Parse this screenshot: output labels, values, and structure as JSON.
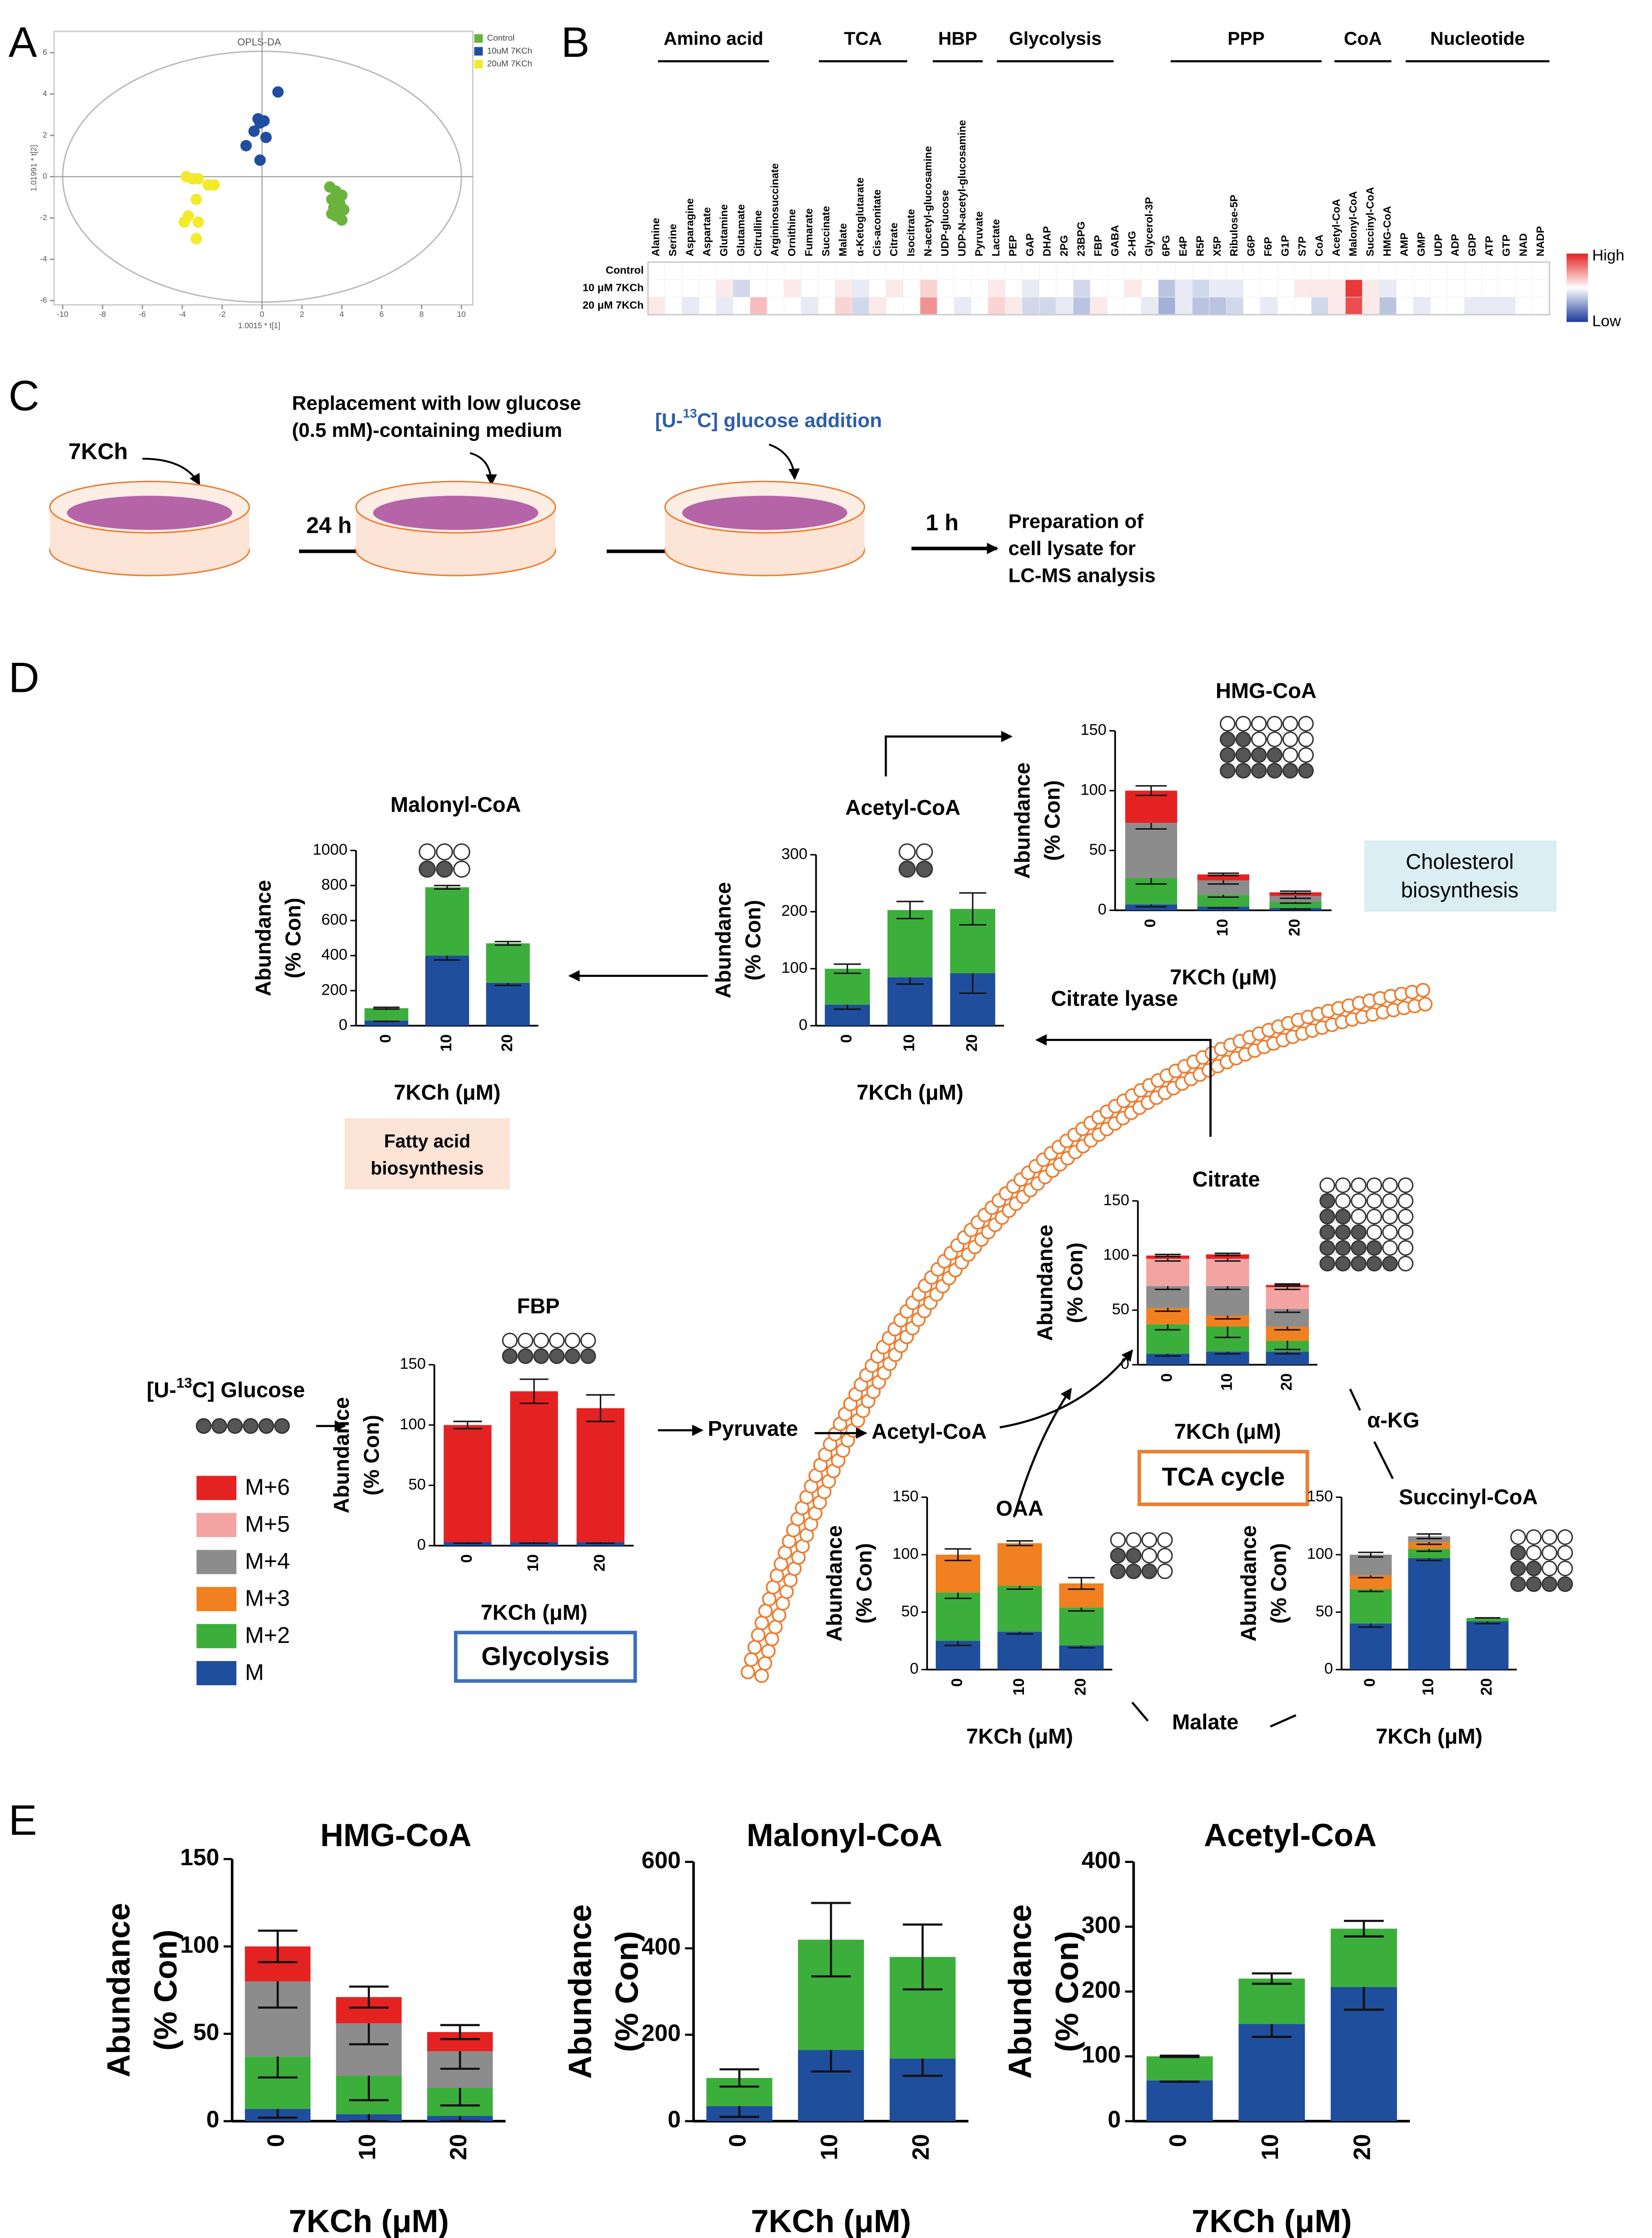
{
  "figure": {
    "panel_labels": [
      "A",
      "B",
      "C",
      "D",
      "E"
    ],
    "protocol": {
      "drug": "7KCh",
      "step1": "24 h",
      "replacement": [
        "Replacement with low glucose",
        "(0.5 mM)-containing medium"
      ],
      "addition": [
        "[U-",
        "13",
        "C] glucose addition"
      ],
      "step2": "1 h",
      "preparation": [
        "Preparation of",
        "cell lysate for",
        "LC-MS analysis"
      ]
    },
    "pathway": {
      "glucose": [
        "[U-",
        "13",
        "C] Glucose"
      ],
      "pyruvate": "Pyruvate",
      "acetyl_coa": "Acetyl-CoA",
      "citrate_lyase": "Citrate lyase",
      "akg": "α-KG",
      "malate": "Malate",
      "tca": "TCA cycle",
      "glycolysis": "Glycolysis",
      "fatty_acid": [
        "Fatty acid",
        "biosynthesis"
      ],
      "cholesterol": [
        "Cholesterol",
        "biosynthesis"
      ]
    }
  },
  "chart_data": [
    {
      "type": "scatter",
      "title": "OPLS-DA",
      "xlabel": "1.0015 * t[1]",
      "ylabel": "1.01991 * t[2]",
      "xlim": [
        -10,
        10
      ],
      "xticks": [
        -10,
        -8,
        -6,
        -4,
        -2,
        0,
        2,
        4,
        6,
        8,
        10
      ],
      "ylim": [
        -6,
        6
      ],
      "yticks": [
        -6,
        -4,
        -2,
        0,
        2,
        4,
        6
      ],
      "series": [
        {
          "name": "Control",
          "color": "#6ab43e",
          "x": [
            3.4,
            3.7,
            4.0,
            3.5,
            3.9,
            3.6,
            4.1,
            3.7,
            4.0,
            3.5
          ],
          "y": [
            -0.5,
            -0.7,
            -0.9,
            -1.1,
            -1.3,
            -1.5,
            -1.6,
            -1.9,
            -2.1,
            -1.8
          ]
        },
        {
          "name": "10uM 7KCh",
          "color": "#1f4ea0",
          "x": [
            -0.2,
            0.1,
            0.8,
            -0.4,
            0.2,
            -0.8,
            -0.1,
            -0.1
          ],
          "y": [
            2.8,
            2.7,
            4.1,
            2.2,
            1.9,
            1.5,
            0.8,
            2.6
          ]
        },
        {
          "name": "20uM 7KCh",
          "color": "#f2ea2a",
          "x": [
            -3.5,
            -3.8,
            -3.2,
            -2.4,
            -2.7,
            -3.3,
            -3.7,
            -3.2,
            -3.9,
            -3.3
          ],
          "y": [
            -0.1,
            0,
            -0.1,
            -0.4,
            -0.4,
            -1.1,
            -1.9,
            -2.2,
            -2.2,
            -3.0
          ]
        }
      ]
    },
    {
      "type": "heatmap",
      "groups": [
        "Amino acid",
        "TCA",
        "HBP",
        "Glycolysis",
        "PPP",
        "CoA",
        "Nucleotide"
      ],
      "colorbar_labels": [
        "High",
        "Low"
      ],
      "colors": [
        "#1a3a9c",
        "#ffffff",
        "#e52222"
      ],
      "categories": [
        "Alanine",
        "Serine",
        "Asparagine",
        "Aspartate",
        "Glutamine",
        "Glutamate",
        "Citrulline",
        "Argininosuccinate",
        "Ornithine",
        "Fumarate",
        "Succinate",
        "Malate",
        "α-Ketoglutarate",
        "Cis-aconitate",
        "Citrate",
        "Isocitrate",
        "N-acetyl-glucosamine",
        "UDP-glucose",
        "UDP-N-acetyl-glucosamine",
        "Pyruvate",
        "Lactate",
        "PEP",
        "GAP",
        "DHAP",
        "2PG",
        "23BPG",
        "FBP",
        "GABA",
        "2-HG",
        "Glycerol-3P",
        "6PG",
        "E4P",
        "R5P",
        "X5P",
        "Ribulose-5P",
        "G6P",
        "F6P",
        "G1P",
        "S7P",
        "CoA",
        "Acetyl-CoA",
        "Malonyl-CoA",
        "Succinyl-CoA",
        "HMG-CoA",
        "AMP",
        "GMP",
        "UDP",
        "ADP",
        "GDP",
        "ATP",
        "GTP",
        "NAD",
        "NADP"
      ],
      "series": [
        {
          "name": "Control",
          "values": [
            0,
            0,
            0,
            0,
            0,
            0,
            0,
            0,
            0,
            0,
            0,
            0,
            0,
            0,
            0,
            0,
            0,
            0,
            0,
            0,
            0,
            0,
            0,
            0,
            0,
            0,
            0,
            0,
            0,
            0,
            0,
            0,
            0,
            0,
            0,
            0,
            0,
            0,
            0,
            0,
            0,
            0,
            0,
            0,
            0,
            0,
            0,
            0,
            0,
            0,
            0,
            0,
            0
          ]
        },
        {
          "name": "10 μM 7KCh",
          "values": [
            0,
            0,
            0,
            0,
            0.1,
            -0.2,
            0,
            0,
            0.1,
            0,
            0,
            0.1,
            -0.1,
            0,
            0.1,
            0,
            0.2,
            0,
            0,
            0,
            0.1,
            0,
            -0.1,
            0,
            0,
            -0.2,
            0,
            0,
            0.1,
            0,
            -0.3,
            -0.1,
            -0.2,
            -0.1,
            -0.1,
            0,
            0,
            0,
            0.1,
            0.1,
            0.1,
            0.9,
            0.1,
            -0.1,
            0,
            0,
            0,
            0,
            0,
            0,
            0,
            0,
            0
          ]
        },
        {
          "name": "20 μM 7KCh",
          "values": [
            0.1,
            0,
            -0.1,
            0,
            -0.1,
            0,
            0.3,
            0,
            0,
            -0.1,
            0,
            0.2,
            -0.2,
            0.1,
            0,
            0,
            0.5,
            0,
            -0.1,
            0,
            0.2,
            0.1,
            -0.2,
            -0.2,
            -0.1,
            -0.3,
            0.1,
            0,
            0,
            -0.1,
            -0.4,
            -0.1,
            -0.3,
            -0.3,
            -0.2,
            0,
            -0.1,
            0,
            0,
            -0.2,
            0.1,
            0.8,
            0.1,
            -0.3,
            0,
            -0.1,
            0,
            0,
            -0.1,
            -0.1,
            -0.1,
            0,
            0
          ]
        }
      ]
    },
    {
      "type": "stacked_bar",
      "title": "Malonyl-CoA",
      "categories": [
        "0",
        "10",
        "20"
      ],
      "xlabel": "7KCh (μM)",
      "ylabel": [
        "Abundance",
        "(% Con)"
      ],
      "ylim": [
        0,
        1000
      ],
      "yticks": [
        0,
        200,
        400,
        600,
        800,
        1000
      ],
      "series": [
        {
          "color": "#1f4e9c",
          "values": [
            30,
            400,
            245
          ],
          "errors": [
            5,
            25,
            15
          ]
        },
        {
          "color": "#3cae3c",
          "values": [
            70,
            390,
            225
          ],
          "errors": [
            5,
            10,
            10
          ]
        }
      ]
    },
    {
      "type": "stacked_bar",
      "title": "Acetyl-CoA",
      "categories": [
        "0",
        "10",
        "20"
      ],
      "xlabel": "7KCh (μM)",
      "ylabel": [
        "Abundance",
        "(% Con)"
      ],
      "ylim": [
        0,
        300
      ],
      "yticks": [
        0,
        100,
        200,
        300
      ],
      "series": [
        {
          "color": "#1f4e9c",
          "values": [
            37,
            85,
            92
          ],
          "errors": [
            8,
            12,
            35
          ]
        },
        {
          "color": "#3cae3c",
          "values": [
            63,
            118,
            113
          ],
          "errors": [
            8,
            15,
            28
          ]
        }
      ]
    },
    {
      "type": "stacked_bar",
      "title": "HMG-CoA",
      "categories": [
        "0",
        "10",
        "20"
      ],
      "xlabel": "7KCh (μM)",
      "ylabel": [
        "Abundance",
        "(% Con)"
      ],
      "ylim": [
        0,
        150
      ],
      "yticks": [
        0,
        50,
        100,
        150
      ],
      "series": [
        {
          "color": "#1f4e9c",
          "values": [
            5,
            3,
            2
          ],
          "errors": [
            2,
            1,
            1
          ]
        },
        {
          "color": "#3cae3c",
          "values": [
            22,
            10,
            5
          ],
          "errors": [
            5,
            2,
            1
          ]
        },
        {
          "color": "#8c8c8c",
          "values": [
            46,
            12,
            5
          ],
          "errors": [
            5,
            3,
            2
          ]
        },
        {
          "color": "#e52222",
          "values": [
            27,
            5,
            3
          ],
          "errors": [
            4,
            1,
            1
          ]
        }
      ]
    },
    {
      "type": "stacked_bar",
      "title": "Citrate",
      "categories": [
        "0",
        "10",
        "20"
      ],
      "xlabel": "7KCh (μM)",
      "ylabel": [
        "Abundance",
        "(% Con)"
      ],
      "ylim": [
        0,
        150
      ],
      "yticks": [
        0,
        50,
        100,
        150
      ],
      "series": [
        {
          "name": "M",
          "color": "#1f4e9c",
          "values": [
            10,
            12,
            12
          ],
          "errors": [
            2,
            2,
            2
          ]
        },
        {
          "name": "M+2",
          "color": "#3cae3c",
          "values": [
            27,
            23,
            10
          ],
          "errors": [
            5,
            10,
            8
          ]
        },
        {
          "name": "M+3",
          "color": "#f08020",
          "values": [
            15,
            10,
            13
          ],
          "errors": [
            3,
            3,
            3
          ]
        },
        {
          "name": "M+4",
          "color": "#8c8c8c",
          "values": [
            20,
            27,
            16
          ],
          "errors": [
            3,
            3,
            3
          ]
        },
        {
          "name": "M+5",
          "color": "#f4a3a3",
          "values": [
            25,
            25,
            20
          ],
          "errors": [
            2,
            2,
            2
          ]
        },
        {
          "name": "M+6",
          "color": "#e52222",
          "values": [
            3,
            4,
            2
          ],
          "errors": [
            1,
            1,
            1
          ]
        }
      ]
    },
    {
      "type": "stacked_bar",
      "title": "FBP",
      "categories": [
        "0",
        "10",
        "20"
      ],
      "xlabel": "7KCh (μM)",
      "ylabel": [
        "Abundance",
        "(% Con)"
      ],
      "ylim": [
        0,
        150
      ],
      "yticks": [
        0,
        50,
        100,
        150
      ],
      "series": [
        {
          "color": "#1f4e9c",
          "values": [
            3,
            3,
            3
          ],
          "errors": [
            1,
            1,
            1
          ]
        },
        {
          "color": "#e52222",
          "values": [
            97,
            125,
            111
          ],
          "errors": [
            3,
            10,
            11
          ]
        }
      ]
    },
    {
      "type": "stacked_bar",
      "title": "OAA",
      "categories": [
        "0",
        "10",
        "20"
      ],
      "xlabel": "7KCh (μM)",
      "ylabel": [
        "Abundance",
        "(% Con)"
      ],
      "ylim": [
        0,
        150
      ],
      "yticks": [
        0,
        50,
        100,
        150
      ],
      "series": [
        {
          "color": "#1f4e9c",
          "values": [
            25,
            33,
            21
          ],
          "errors": [
            4,
            2,
            2
          ]
        },
        {
          "color": "#3cae3c",
          "values": [
            42,
            40,
            33
          ],
          "errors": [
            5,
            3,
            3
          ]
        },
        {
          "color": "#f08020",
          "values": [
            33,
            37,
            21
          ],
          "errors": [
            5,
            2,
            5
          ]
        }
      ]
    },
    {
      "type": "stacked_bar",
      "title": "Succinyl-CoA",
      "categories": [
        "0",
        "10",
        "20"
      ],
      "xlabel": "7KCh (μM)",
      "ylabel": [
        "Abundance",
        "(% Con)"
      ],
      "ylim": [
        0,
        150
      ],
      "yticks": [
        0,
        50,
        100,
        150
      ],
      "series": [
        {
          "color": "#1f4e9c",
          "values": [
            40,
            97,
            42
          ],
          "errors": [
            3,
            2,
            2
          ]
        },
        {
          "color": "#3cae3c",
          "values": [
            30,
            8,
            3
          ],
          "errors": [
            2,
            2,
            0
          ]
        },
        {
          "color": "#f08020",
          "values": [
            12,
            6,
            0
          ],
          "errors": [
            2,
            2,
            0
          ]
        },
        {
          "color": "#8c8c8c",
          "values": [
            18,
            5,
            0
          ],
          "errors": [
            2,
            2,
            0
          ]
        }
      ]
    },
    {
      "type": "stacked_bar",
      "title": "HMG-CoA",
      "categories": [
        "0",
        "10",
        "20"
      ],
      "xlabel": "7KCh (μM)",
      "ylabel": [
        "Abundance",
        "(% Con)"
      ],
      "ylim": [
        0,
        150
      ],
      "yticks": [
        0,
        50,
        100,
        150
      ],
      "series": [
        {
          "color": "#1f4e9c",
          "values": [
            7,
            4,
            3
          ],
          "errors": [
            5,
            4,
            3
          ]
        },
        {
          "color": "#3cae3c",
          "values": [
            30,
            22,
            16
          ],
          "errors": [
            12,
            14,
            10
          ]
        },
        {
          "color": "#8c8c8c",
          "values": [
            43,
            30,
            21
          ],
          "errors": [
            15,
            12,
            10
          ]
        },
        {
          "color": "#e52222",
          "values": [
            20,
            15,
            11
          ],
          "errors": [
            9,
            6,
            4
          ]
        }
      ]
    },
    {
      "type": "stacked_bar",
      "title": "Malonyl-CoA",
      "categories": [
        "0",
        "10",
        "20"
      ],
      "xlabel": "7KCh (μM)",
      "ylabel": [
        "Abundance",
        "(% Con)"
      ],
      "ylim": [
        0,
        600
      ],
      "yticks": [
        0,
        200,
        400,
        600
      ],
      "series": [
        {
          "color": "#1f4e9c",
          "values": [
            35,
            165,
            145
          ],
          "errors": [
            25,
            50,
            40
          ]
        },
        {
          "color": "#3cae3c",
          "values": [
            65,
            255,
            235
          ],
          "errors": [
            20,
            85,
            75
          ]
        }
      ]
    },
    {
      "type": "stacked_bar",
      "title": "Acetyl-CoA",
      "categories": [
        "0",
        "10",
        "20"
      ],
      "xlabel": "7KCh (μM)",
      "ylabel": [
        "Abundance",
        "(% Con)"
      ],
      "ylim": [
        0,
        400
      ],
      "yticks": [
        0,
        100,
        200,
        300,
        400
      ],
      "series": [
        {
          "color": "#1f4e9c",
          "values": [
            63,
            150,
            207
          ],
          "errors": [
            2,
            20,
            35
          ]
        },
        {
          "color": "#3cae3c",
          "values": [
            37,
            70,
            90
          ],
          "errors": [
            1,
            8,
            12
          ]
        }
      ]
    }
  ]
}
